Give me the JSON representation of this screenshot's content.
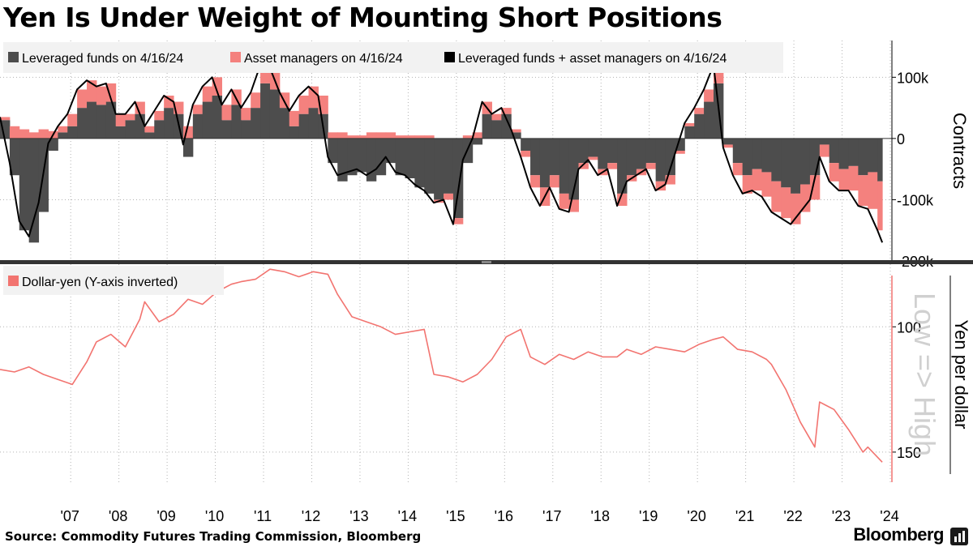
{
  "title": "Yen Is Under Weight of Mounting Short Positions",
  "source": "Source: Commodity Futures Trading Commission, Bloomberg",
  "brand": "Bloomberg",
  "colors": {
    "leveraged": "#4d4d4d",
    "asset_managers": "#f4817e",
    "combined": "#000000",
    "dollar_yen": "#f27470",
    "grid": "#b3b3b3",
    "legend_bg": "#f2f2f2"
  },
  "chart_data": [
    {
      "type": "area",
      "panel": "top",
      "ylabel": "Contracts",
      "ylim": [
        -200000,
        160000
      ],
      "y_ticks": [
        100000,
        0,
        -100000,
        -200000
      ],
      "y_tick_labels": [
        "100k",
        "0",
        "-100k",
        "-200k"
      ],
      "grid": true,
      "legend_position": "top-left",
      "x_tick_labels": [
        "'07",
        "'08",
        "'09",
        "'10",
        "'11",
        "'12",
        "'13",
        "'14",
        "'15",
        "'16",
        "'17",
        "'18",
        "'19",
        "'20",
        "'21",
        "'22",
        "'23",
        "'24"
      ],
      "x_tick_years": [
        2007,
        2008,
        2009,
        2010,
        2011,
        2012,
        2013,
        2014,
        2015,
        2016,
        2017,
        2018,
        2019,
        2020,
        2021,
        2022,
        2023,
        2024
      ],
      "x_range": [
        2006.0,
        2024.5
      ],
      "series": [
        {
          "name": "Leveraged funds on 4/16/24",
          "kind": "area",
          "x": [
            2006.0,
            2006.2,
            2006.4,
            2006.6,
            2006.8,
            2007.0,
            2007.2,
            2007.4,
            2007.6,
            2007.8,
            2008.0,
            2008.2,
            2008.4,
            2008.6,
            2008.8,
            2009.0,
            2009.2,
            2009.4,
            2009.6,
            2009.8,
            2010.0,
            2010.2,
            2010.4,
            2010.6,
            2010.8,
            2011.0,
            2011.2,
            2011.4,
            2011.6,
            2011.8,
            2012.0,
            2012.2,
            2012.4,
            2012.6,
            2012.8,
            2013.0,
            2013.2,
            2013.4,
            2013.6,
            2013.8,
            2014.0,
            2014.2,
            2014.4,
            2014.6,
            2014.8,
            2015.0,
            2015.2,
            2015.4,
            2015.6,
            2015.8,
            2016.0,
            2016.2,
            2016.4,
            2016.6,
            2016.8,
            2017.0,
            2017.2,
            2017.4,
            2017.6,
            2017.8,
            2018.0,
            2018.2,
            2018.4,
            2018.6,
            2018.8,
            2019.0,
            2019.2,
            2019.4,
            2019.6,
            2019.8,
            2020.0,
            2020.2,
            2020.4,
            2020.6,
            2020.8,
            2021.0,
            2021.2,
            2021.4,
            2021.6,
            2021.8,
            2022.0,
            2022.2,
            2022.4,
            2022.6,
            2022.8,
            2023.0,
            2023.2,
            2023.4,
            2023.6,
            2023.8,
            2024.0,
            2024.2,
            2024.3
          ],
          "values": [
            30000,
            -60000,
            -150000,
            -170000,
            -120000,
            -20000,
            10000,
            20000,
            50000,
            60000,
            55000,
            60000,
            20000,
            30000,
            40000,
            10000,
            30000,
            50000,
            40000,
            -30000,
            40000,
            60000,
            70000,
            30000,
            55000,
            30000,
            50000,
            90000,
            80000,
            50000,
            20000,
            40000,
            50000,
            40000,
            -40000,
            -70000,
            -60000,
            -55000,
            -70000,
            -60000,
            -40000,
            -60000,
            -65000,
            -80000,
            -90000,
            -100000,
            -90000,
            -130000,
            -40000,
            -10000,
            40000,
            30000,
            40000,
            10000,
            -20000,
            -60000,
            -80000,
            -60000,
            -90000,
            -100000,
            -40000,
            -30000,
            -50000,
            -40000,
            -90000,
            -60000,
            -50000,
            -40000,
            -70000,
            -60000,
            -20000,
            20000,
            40000,
            60000,
            90000,
            -10000,
            -40000,
            -60000,
            -50000,
            -55000,
            -70000,
            -80000,
            -90000,
            -75000,
            -60000,
            -10000,
            -40000,
            -50000,
            -45000,
            -60000,
            -55000,
            -70000,
            -60000
          ]
        },
        {
          "name": "Asset managers on 4/16/24",
          "kind": "area",
          "x": [
            2006.0,
            2006.2,
            2006.4,
            2006.6,
            2006.8,
            2007.0,
            2007.2,
            2007.4,
            2007.6,
            2007.8,
            2008.0,
            2008.2,
            2008.4,
            2008.6,
            2008.8,
            2009.0,
            2009.2,
            2009.4,
            2009.6,
            2009.8,
            2010.0,
            2010.2,
            2010.4,
            2010.6,
            2010.8,
            2011.0,
            2011.2,
            2011.4,
            2011.6,
            2011.8,
            2012.0,
            2012.2,
            2012.4,
            2012.6,
            2012.8,
            2013.0,
            2013.2,
            2013.4,
            2013.6,
            2013.8,
            2014.0,
            2014.2,
            2014.4,
            2014.6,
            2014.8,
            2015.0,
            2015.2,
            2015.4,
            2015.6,
            2015.8,
            2016.0,
            2016.2,
            2016.4,
            2016.6,
            2016.8,
            2017.0,
            2017.2,
            2017.4,
            2017.6,
            2017.8,
            2018.0,
            2018.2,
            2018.4,
            2018.6,
            2018.8,
            2019.0,
            2019.2,
            2019.4,
            2019.6,
            2019.8,
            2020.0,
            2020.2,
            2020.4,
            2020.6,
            2020.8,
            2021.0,
            2021.2,
            2021.4,
            2021.6,
            2021.8,
            2022.0,
            2022.2,
            2022.4,
            2022.6,
            2022.8,
            2023.0,
            2023.2,
            2023.4,
            2023.6,
            2023.8,
            2024.0,
            2024.2,
            2024.3
          ],
          "values": [
            5000,
            20000,
            15000,
            10000,
            15000,
            12000,
            10000,
            20000,
            30000,
            35000,
            30000,
            30000,
            20000,
            10000,
            20000,
            10000,
            15000,
            20000,
            20000,
            20000,
            15000,
            25000,
            30000,
            25000,
            25000,
            20000,
            25000,
            30000,
            35000,
            25000,
            25000,
            30000,
            35000,
            30000,
            10000,
            10000,
            5000,
            5000,
            10000,
            10000,
            10000,
            5000,
            5000,
            5000,
            5000,
            -5000,
            -10000,
            -10000,
            5000,
            10000,
            20000,
            10000,
            10000,
            5000,
            -10000,
            -20000,
            -30000,
            -20000,
            -25000,
            -20000,
            -10000,
            -5000,
            -10000,
            -10000,
            -20000,
            -10000,
            -10000,
            -10000,
            -15000,
            -15000,
            -5000,
            5000,
            10000,
            20000,
            30000,
            -5000,
            -20000,
            -30000,
            -35000,
            -40000,
            -50000,
            -50000,
            -50000,
            -45000,
            -40000,
            -20000,
            -30000,
            -35000,
            -40000,
            -50000,
            -60000,
            -80000,
            -100000
          ]
        },
        {
          "name": "Leveraged funds + asset managers on 4/16/24",
          "kind": "line",
          "x": [
            2006.0,
            2006.2,
            2006.4,
            2006.6,
            2006.8,
            2007.0,
            2007.2,
            2007.4,
            2007.6,
            2007.8,
            2008.0,
            2008.2,
            2008.4,
            2008.6,
            2008.8,
            2009.0,
            2009.2,
            2009.4,
            2009.6,
            2009.8,
            2010.0,
            2010.2,
            2010.4,
            2010.6,
            2010.8,
            2011.0,
            2011.2,
            2011.4,
            2011.6,
            2011.8,
            2012.0,
            2012.2,
            2012.4,
            2012.6,
            2012.8,
            2013.0,
            2013.2,
            2013.4,
            2013.6,
            2013.8,
            2014.0,
            2014.2,
            2014.4,
            2014.6,
            2014.8,
            2015.0,
            2015.2,
            2015.4,
            2015.6,
            2015.8,
            2016.0,
            2016.2,
            2016.4,
            2016.6,
            2016.8,
            2017.0,
            2017.2,
            2017.4,
            2017.6,
            2017.8,
            2018.0,
            2018.2,
            2018.4,
            2018.6,
            2018.8,
            2019.0,
            2019.2,
            2019.4,
            2019.6,
            2019.8,
            2020.0,
            2020.2,
            2020.4,
            2020.6,
            2020.8,
            2021.0,
            2021.2,
            2021.4,
            2021.6,
            2021.8,
            2022.0,
            2022.2,
            2022.4,
            2022.6,
            2022.8,
            2023.0,
            2023.2,
            2023.4,
            2023.6,
            2023.8,
            2024.0,
            2024.2,
            2024.3
          ],
          "values": [
            35000,
            -40000,
            -135000,
            -160000,
            -105000,
            -8000,
            20000,
            40000,
            80000,
            95000,
            85000,
            90000,
            40000,
            40000,
            60000,
            20000,
            45000,
            70000,
            60000,
            -10000,
            55000,
            85000,
            100000,
            55000,
            80000,
            50000,
            75000,
            120000,
            115000,
            75000,
            45000,
            70000,
            85000,
            70000,
            -30000,
            -60000,
            -55000,
            -50000,
            -60000,
            -50000,
            -30000,
            -55000,
            -60000,
            -75000,
            -85000,
            -105000,
            -100000,
            -140000,
            -35000,
            0,
            60000,
            40000,
            50000,
            15000,
            -30000,
            -80000,
            -110000,
            -80000,
            -115000,
            -120000,
            -50000,
            -35000,
            -60000,
            -50000,
            -110000,
            -70000,
            -60000,
            -50000,
            -85000,
            -75000,
            -25000,
            25000,
            50000,
            80000,
            120000,
            -15000,
            -60000,
            -90000,
            -85000,
            -95000,
            -120000,
            -130000,
            -140000,
            -120000,
            -100000,
            -30000,
            -70000,
            -85000,
            -85000,
            -110000,
            -115000,
            -150000,
            -170000
          ]
        }
      ]
    },
    {
      "type": "line",
      "panel": "bottom",
      "ylabel": "Yen per dollar",
      "y_inverted": true,
      "ylim": [
        162,
        75
      ],
      "y_ticks": [
        100,
        150
      ],
      "y_tick_labels": [
        "100",
        "150"
      ],
      "annotation": "Low => High",
      "grid": true,
      "legend_position": "top-left",
      "x_range": [
        2006.0,
        2024.5
      ],
      "series": [
        {
          "name": "Dollar-yen (Y-axis inverted)",
          "x": [
            2006.0,
            2006.3,
            2006.6,
            2006.9,
            2007.2,
            2007.5,
            2007.8,
            2008.0,
            2008.3,
            2008.6,
            2008.9,
            2009.0,
            2009.3,
            2009.6,
            2009.9,
            2010.2,
            2010.5,
            2010.8,
            2011.0,
            2011.3,
            2011.6,
            2011.9,
            2012.2,
            2012.5,
            2012.8,
            2013.0,
            2013.3,
            2013.6,
            2013.9,
            2014.2,
            2014.5,
            2014.8,
            2015.0,
            2015.3,
            2015.6,
            2015.9,
            2016.2,
            2016.5,
            2016.8,
            2017.0,
            2017.3,
            2017.6,
            2017.9,
            2018.2,
            2018.5,
            2018.8,
            2019.0,
            2019.3,
            2019.6,
            2019.9,
            2020.2,
            2020.5,
            2020.8,
            2021.0,
            2021.3,
            2021.6,
            2021.9,
            2022.0,
            2022.3,
            2022.6,
            2022.9,
            2023.0,
            2023.3,
            2023.6,
            2023.9,
            2024.0,
            2024.3
          ],
          "values": [
            117,
            118,
            116,
            119,
            121,
            123,
            114,
            106,
            103,
            108,
            97,
            90,
            98,
            95,
            89,
            91,
            86,
            83,
            82,
            81,
            77,
            78,
            80,
            78,
            79,
            87,
            96,
            98,
            100,
            103,
            102,
            101,
            119,
            120,
            122,
            119,
            113,
            104,
            101,
            112,
            115,
            111,
            113,
            110,
            112,
            112,
            109,
            111,
            108,
            109,
            110,
            107,
            105,
            104,
            109,
            110,
            113,
            115,
            125,
            138,
            148,
            130,
            133,
            141,
            150,
            148,
            154
          ]
        }
      ]
    }
  ]
}
